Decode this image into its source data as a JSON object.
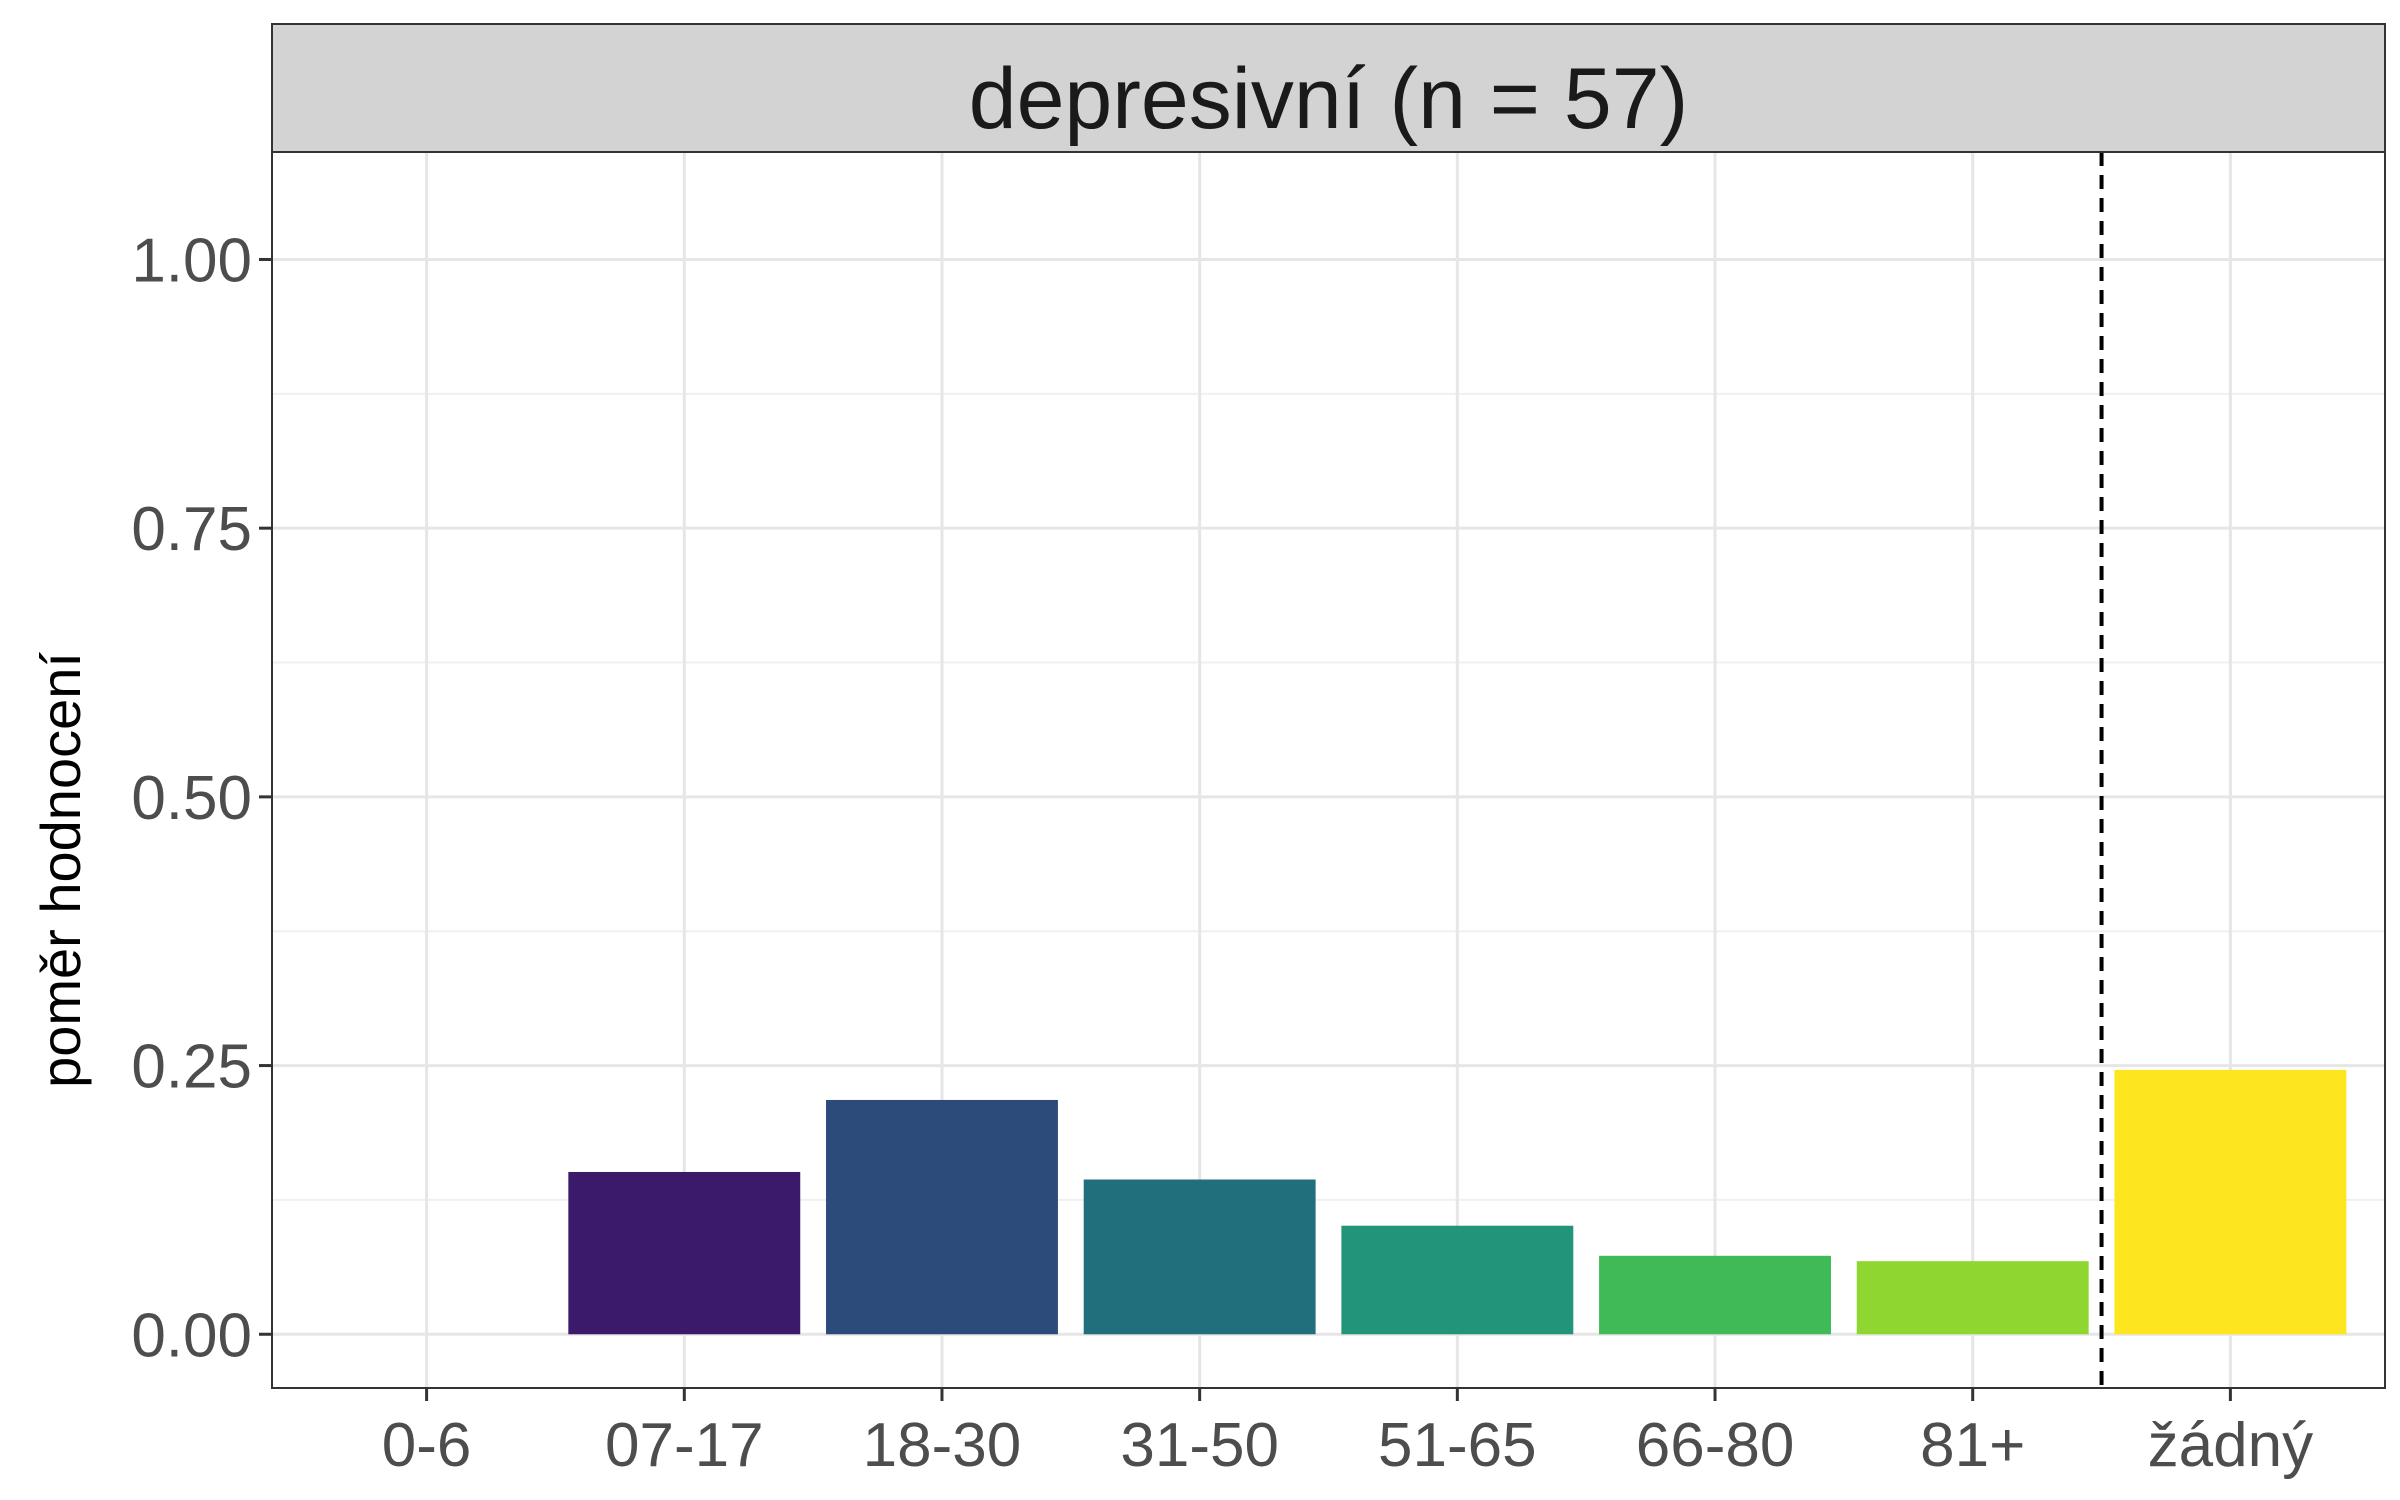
{
  "chart_data": {
    "type": "bar",
    "facet_title": "depresivní (n = 57)",
    "ylabel": "poměr hodnocení",
    "xlabel": "",
    "categories": [
      "0-6",
      "07-17",
      "18-30",
      "31-50",
      "51-65",
      "66-80",
      "81+",
      "žádný"
    ],
    "values": [
      0.0,
      0.151,
      0.218,
      0.144,
      0.101,
      0.073,
      0.068,
      0.246
    ],
    "colors": [
      "#440154",
      "#3b1a6b",
      "#2c4b7a",
      "#216e7c",
      "#21947a",
      "#3fba57",
      "#8fd631",
      "#fde61f"
    ],
    "ylim": [
      -0.05,
      1.1
    ],
    "y_ticks": [
      "0.00",
      "0.25",
      "0.50",
      "0.75",
      "1.00"
    ],
    "y_tick_values": [
      0,
      0.25,
      0.5,
      0.75,
      1.0
    ],
    "separator_after_category": "81+",
    "separator_style": "dashed",
    "grid": true
  }
}
